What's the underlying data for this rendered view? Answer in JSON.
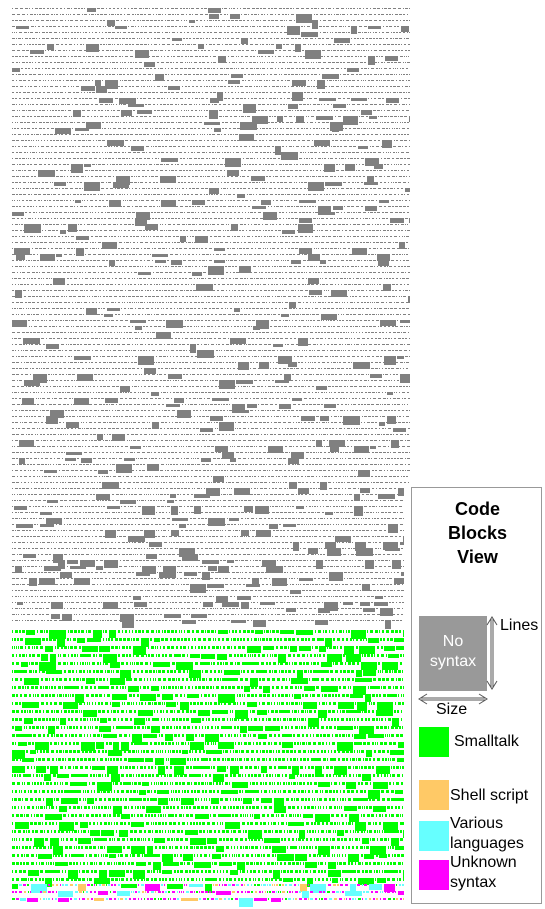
{
  "legend": {
    "title_line1": "Code",
    "title_line2": "Blocks",
    "title_line3": "View",
    "no_syntax_line1": "No",
    "no_syntax_line2": "syntax",
    "lines_label": "Lines",
    "size_label": "Size",
    "items": [
      {
        "label": "Smalltalk",
        "color": "#00ff00"
      },
      {
        "label": "Shell script",
        "color": "#ffc966"
      },
      {
        "label_line1": "Various",
        "label_line2": "languages",
        "color": "#66ffff"
      },
      {
        "label_line1": "Unknown",
        "label_line2": "syntax",
        "color": "#ff00ff"
      }
    ],
    "no_syntax_color": "#999999"
  },
  "bands": [
    {
      "name": "no-syntax",
      "color": "#808080"
    },
    {
      "name": "smalltalk",
      "color": "#00ff00"
    },
    {
      "name": "shell-script",
      "color": "#ffc966"
    },
    {
      "name": "various-languages",
      "color": "#66ffff"
    },
    {
      "name": "unknown-syntax",
      "color": "#ff00ff"
    }
  ]
}
